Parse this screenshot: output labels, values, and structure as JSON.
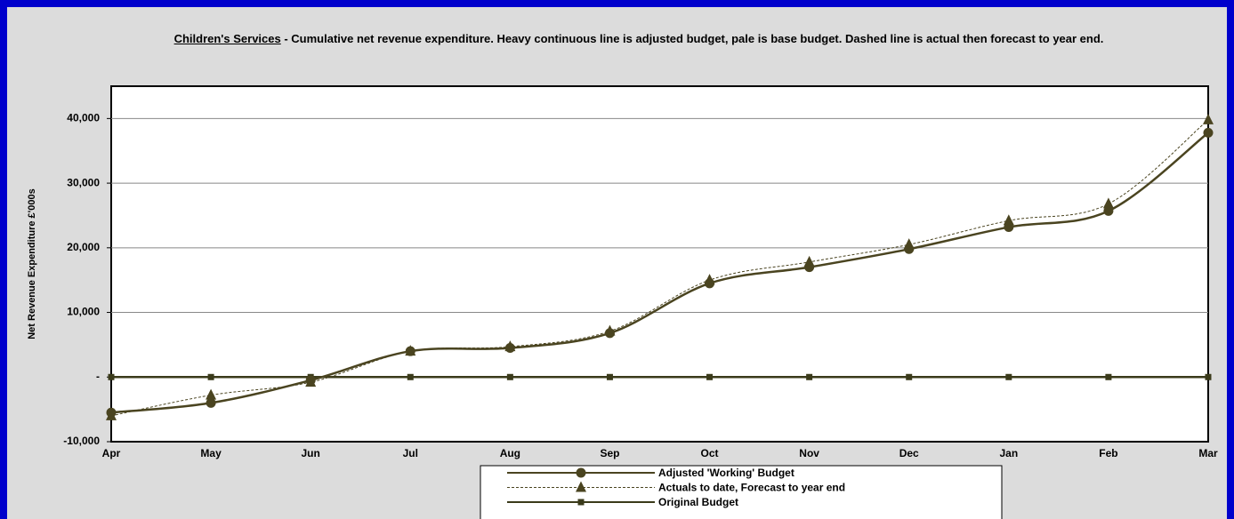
{
  "chart_data": {
    "type": "line",
    "title_prefix": "Children's Services",
    "title": " - Cumulative net revenue expenditure. Heavy continuous line is adjusted budget, pale is base budget. Dashed line is actual then forecast to year end.",
    "y_label": "Net Revenue Expenditure £'000s",
    "categories": [
      "Apr",
      "May",
      "Jun",
      "Jul",
      "Aug",
      "Sep",
      "Oct",
      "Nov",
      "Dec",
      "Jan",
      "Feb",
      "Mar"
    ],
    "series": [
      {
        "name": "Adjusted 'Working' Budget",
        "color": "#4a4420",
        "dashed": false,
        "marker": "circle",
        "values": [
          -5500,
          -4000,
          -500,
          4000,
          4500,
          6800,
          14500,
          17000,
          19800,
          23200,
          25700,
          37800
        ]
      },
      {
        "name": "Actuals to date, Forecast to year end",
        "color": "#4a4420",
        "dashed": true,
        "marker": "triangle",
        "values": [
          -6000,
          -2800,
          -800,
          4000,
          4700,
          7100,
          15000,
          17800,
          20500,
          24200,
          26800,
          39800
        ]
      },
      {
        "name": "Original Budget",
        "color": "#3a3a1a",
        "dashed": false,
        "marker": "square",
        "values": [
          0,
          0,
          0,
          0,
          0,
          0,
          0,
          0,
          0,
          0,
          0,
          0
        ]
      }
    ],
    "ylim": [
      -10000,
      45000
    ],
    "yticks": [
      {
        "value": -10000,
        "label": "-10,000"
      },
      {
        "value": 0,
        "label": "-"
      },
      {
        "value": 10000,
        "label": "10,000"
      },
      {
        "value": 20000,
        "label": "20,000"
      },
      {
        "value": 30000,
        "label": "30,000"
      },
      {
        "value": 40000,
        "label": "40,000"
      }
    ],
    "grid": true
  }
}
